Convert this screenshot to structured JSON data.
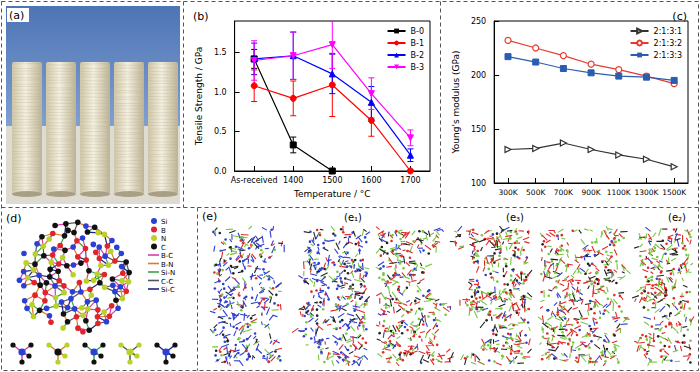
{
  "panels": {
    "a": {
      "label": "(a)"
    },
    "d": {
      "label": "(d)",
      "atoms": [
        {
          "label": "Si",
          "color": "#2a3fd6"
        },
        {
          "label": "B",
          "color": "#e0242a"
        },
        {
          "label": "N",
          "color": "#b9d22a"
        },
        {
          "label": "C",
          "color": "#111111"
        }
      ],
      "bonds": [
        {
          "label": "B-C",
          "color": "#d6409f"
        },
        {
          "label": "B-N",
          "color": "#e07a2a"
        },
        {
          "label": "Si-N",
          "color": "#3aa04a"
        },
        {
          "label": "C-C",
          "color": "#555555"
        },
        {
          "label": "Si-C",
          "color": "#202080"
        }
      ]
    },
    "e": {
      "label": "(e)",
      "subpanels": [
        {
          "label": "(e₁)"
        },
        {
          "label": "(e₃)"
        },
        {
          "label": "(e₂)"
        }
      ]
    }
  },
  "chart_data": [
    {
      "type": "line",
      "title": "(b)",
      "x_label": "Temperature / °C",
      "y_label": "Tensile Strength / GPa",
      "categories": [
        "As-received",
        "1400",
        "1500",
        "1600",
        "1700"
      ],
      "ylim": [
        0,
        1.9
      ],
      "yticks": [
        {
          "value": 0,
          "label": "0.0"
        },
        {
          "value": 0.5,
          "label": "0.5"
        },
        {
          "value": 1,
          "label": "1.0"
        },
        {
          "value": 1.5,
          "label": "1.5"
        }
      ],
      "grid": false,
      "legend": "upper right",
      "series": [
        {
          "name": "B-0",
          "color": "#000000",
          "marker": "square",
          "line_style": "solid",
          "values": [
            1.42,
            0.33,
            0.0,
            null,
            null
          ],
          "errors": [
            0.12,
            0.1,
            0.02,
            null,
            null
          ]
        },
        {
          "name": "B-1",
          "color": "#ff0000",
          "marker": "circle",
          "line_style": "solid",
          "values": [
            1.08,
            0.92,
            1.09,
            0.64,
            0.0
          ],
          "errors": [
            0.2,
            0.22,
            0.4,
            0.2,
            0.02
          ]
        },
        {
          "name": "B-2",
          "color": "#0000ff",
          "marker": "triangle",
          "line_style": "solid",
          "values": [
            1.42,
            1.46,
            1.23,
            0.87,
            0.2
          ],
          "errors": [
            0.2,
            0.3,
            0.25,
            0.2,
            0.08
          ]
        },
        {
          "name": "B-3",
          "color": "#ff00ff",
          "marker": "triangle-down",
          "line_style": "solid",
          "values": [
            1.4,
            1.46,
            1.6,
            0.98,
            0.42
          ],
          "errors": [
            0.25,
            0.3,
            0.3,
            0.2,
            0.1
          ]
        }
      ]
    },
    {
      "type": "line",
      "title": "(c)",
      "y_label": "Young's modulus (GPa)",
      "categories": [
        "300K",
        "500K",
        "700K",
        "900K",
        "1100K",
        "1300K",
        "1500K"
      ],
      "ylim": [
        100,
        250
      ],
      "yticks": [
        100,
        150,
        200,
        250
      ],
      "grid": false,
      "legend": "upper right",
      "series": [
        {
          "name": "2:1:3:1",
          "color": "#333333",
          "marker": "triangle-right-open",
          "line_style": "solid",
          "values": [
            131,
            132,
            137,
            131,
            126,
            122,
            115
          ]
        },
        {
          "name": "2:1:3:2",
          "color": "#e8392c",
          "marker": "circle-open",
          "line_style": "solid",
          "values": [
            232,
            225,
            218,
            210,
            205,
            199,
            192
          ]
        },
        {
          "name": "2:1:3:3",
          "color": "#2a5db0",
          "marker": "square",
          "line_style": "solid",
          "values": [
            217,
            212,
            206,
            202,
            199,
            198,
            195
          ]
        }
      ]
    }
  ]
}
